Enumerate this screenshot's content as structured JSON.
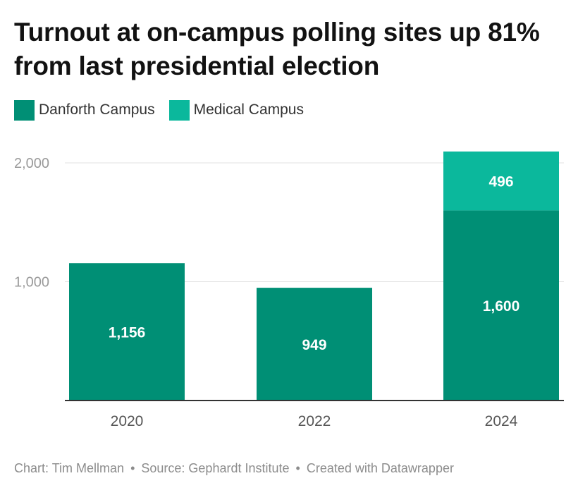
{
  "title": "Turnout at on-campus polling sites up 81% from last presidential election",
  "legend": {
    "items": [
      {
        "label": "Danforth Campus",
        "color": "#008f75"
      },
      {
        "label": "Medical Campus",
        "color": "#0bb89c"
      }
    ]
  },
  "chart_data": {
    "type": "bar",
    "stacked": true,
    "title": "Turnout at on-campus polling sites up 81% from last presidential election",
    "xlabel": "",
    "ylabel": "",
    "categories": [
      "2020",
      "2022",
      "2024"
    ],
    "series": [
      {
        "name": "Danforth Campus",
        "color": "#008f75",
        "values": [
          1156,
          949,
          1600
        ]
      },
      {
        "name": "Medical Campus",
        "color": "#0bb89c",
        "values": [
          0,
          0,
          496
        ]
      }
    ],
    "data_labels": [
      {
        "category": "2020",
        "series": "Danforth Campus",
        "text": "1,156"
      },
      {
        "category": "2022",
        "series": "Danforth Campus",
        "text": "949"
      },
      {
        "category": "2024",
        "series": "Danforth Campus",
        "text": "1,600"
      },
      {
        "category": "2024",
        "series": "Medical Campus",
        "text": "496"
      }
    ],
    "yticks": [
      {
        "value": 1000,
        "label": "1,000"
      },
      {
        "value": 2000,
        "label": "2,000"
      }
    ],
    "ylim": [
      0,
      2096
    ],
    "grid": true,
    "legend_position": "top-left"
  },
  "footer": {
    "chart_credit": "Chart: Tim Mellman",
    "source": "Source: Gephardt Institute",
    "created_with": "Created with Datawrapper",
    "separator": "•"
  }
}
